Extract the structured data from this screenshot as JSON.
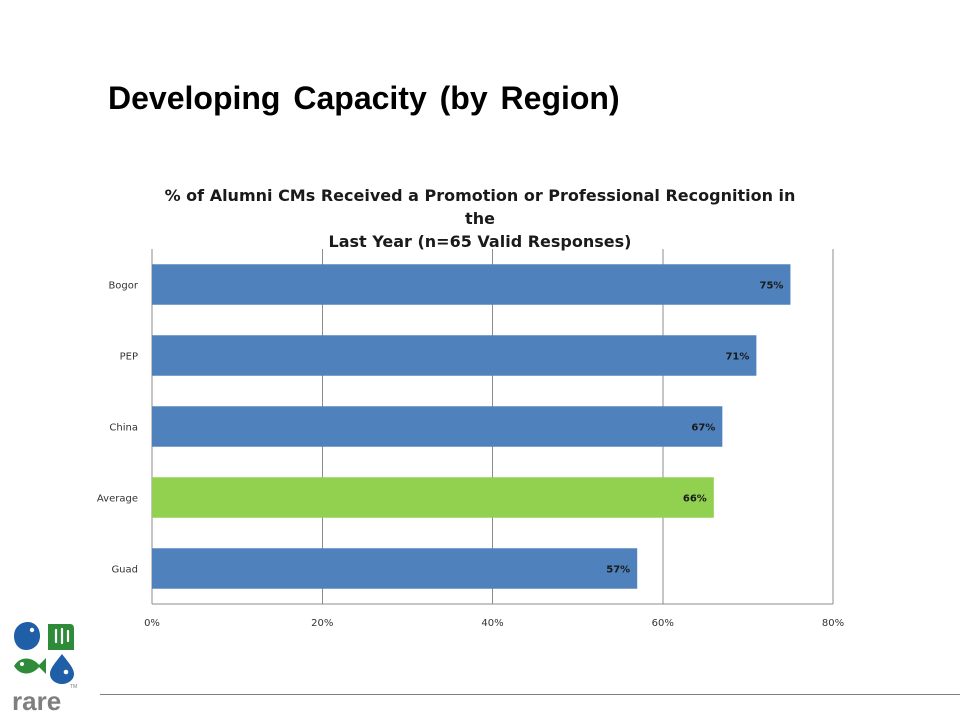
{
  "slide": {
    "title": "Developing Capacity (by Region)"
  },
  "logo": {
    "name": "rare",
    "wordmark": "rare",
    "trademark": "TM",
    "colors": {
      "blue": "#1f5fa8",
      "green": "#2e8b3a",
      "gray": "#7f7f7f"
    }
  },
  "chart_data": {
    "type": "bar",
    "orientation": "horizontal",
    "title_lines": [
      "% of Alumni CMs Received a Promotion or Professional Recognition in the",
      "Last Year (n=65 Valid Responses)"
    ],
    "categories": [
      "Bogor",
      "PEP",
      "China",
      "Average",
      "Guad"
    ],
    "values": [
      75,
      71,
      67,
      66,
      57
    ],
    "data_labels": [
      "75%",
      "71%",
      "67%",
      "66%",
      "57%"
    ],
    "bar_colors": [
      "#4f81bd",
      "#4f81bd",
      "#4f81bd",
      "#92d050",
      "#4f81bd"
    ],
    "xlim": [
      0,
      80
    ],
    "x_ticks": [
      0,
      20,
      40,
      60,
      80
    ],
    "x_tick_labels": [
      "0%",
      "20%",
      "40%",
      "60%",
      "80%"
    ],
    "grid": true,
    "legend": "none",
    "xlabel": "",
    "ylabel": ""
  }
}
